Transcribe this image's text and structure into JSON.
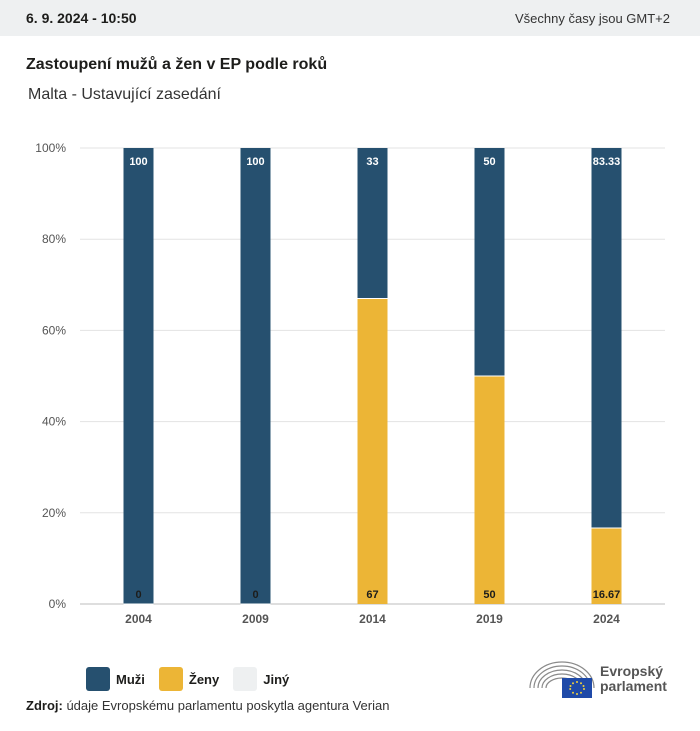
{
  "header": {
    "date": "6. 9. 2024 - 10:50",
    "timezone": "Všechny časy jsou GMT+2"
  },
  "title": "Zastoupení mužů a žen v EP podle roků",
  "subtitle": "Malta - Ustavující zasedání",
  "colors": {
    "muzi": "#26506f",
    "zeny": "#ecb536",
    "jiny": "#eef0f1",
    "grid": "#e3e3e3"
  },
  "chart_data": {
    "type": "bar",
    "stacked": true,
    "categories": [
      "2004",
      "2009",
      "2014",
      "2019",
      "2024"
    ],
    "series": [
      {
        "name": "Muži",
        "values": [
          100,
          100,
          33,
          50,
          83.33
        ]
      },
      {
        "name": "Ženy",
        "values": [
          0,
          0,
          67,
          50,
          16.67
        ]
      },
      {
        "name": "Jiný",
        "values": [
          0,
          0,
          0,
          0,
          0
        ]
      }
    ],
    "data_labels": {
      "muzi": [
        "100",
        "100",
        "33",
        "50",
        "83.33"
      ],
      "zeny": [
        "0",
        "0",
        "67",
        "50",
        "16.67"
      ]
    },
    "y_ticks": [
      "0%",
      "20%",
      "40%",
      "60%",
      "80%",
      "100%"
    ],
    "ylim": [
      0,
      100
    ],
    "grid": true,
    "legend_position": "bottom-left"
  },
  "legend": [
    {
      "label": "Muži",
      "color": "#26506f"
    },
    {
      "label": "Ženy",
      "color": "#ecb536"
    },
    {
      "label": "Jiný",
      "color": "#eef0f1"
    }
  ],
  "source": {
    "label": "Zdroj:",
    "text": " údaje Evropskému parlamentu poskytla agentura Verian"
  },
  "logo": {
    "line1": "Evropský",
    "line2": "parlament"
  }
}
